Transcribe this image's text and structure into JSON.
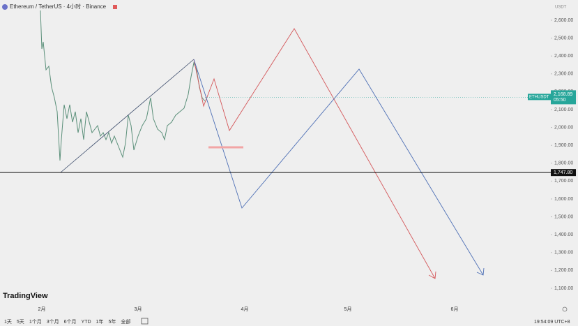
{
  "header": {
    "symbol": "Ethereum / TetherUS · 4小时 · Binance",
    "currency": "USDT"
  },
  "price_axis": {
    "ylim": [
      1100,
      2600
    ],
    "yticks": [
      {
        "value": 2600,
        "label": "2,600.00"
      },
      {
        "value": 2500,
        "label": "2,500.00"
      },
      {
        "value": 2400,
        "label": "2,400.00"
      },
      {
        "value": 2300,
        "label": "2,300.00"
      },
      {
        "value": 2200,
        "label": "2,200.00"
      },
      {
        "value": 2100,
        "label": "2,100.00"
      },
      {
        "value": 2000,
        "label": "2,000.00"
      },
      {
        "value": 1900,
        "label": "1,900.00"
      },
      {
        "value": 1800,
        "label": "1,800.00"
      },
      {
        "value": 1700,
        "label": "1,700.00"
      },
      {
        "value": 1600,
        "label": "1,600.00"
      },
      {
        "value": 1500,
        "label": "1,500.00"
      },
      {
        "value": 1400,
        "label": "1,400.00"
      },
      {
        "value": 1300,
        "label": "1,300.00"
      },
      {
        "value": 1200,
        "label": "1,200.00"
      },
      {
        "value": 1100,
        "label": "1,100.00"
      }
    ],
    "last_price": {
      "symbol": "ETHUSDT",
      "value": 2168.89,
      "label": "2,168.89",
      "countdown": "05:50"
    },
    "horizontal_line": {
      "value": 1747.8,
      "label": "1,747.80"
    }
  },
  "time_axis": [
    "2月",
    "3月",
    "4月",
    "5月",
    "6月"
  ],
  "logo": "TradingView",
  "toolbar": {
    "ranges": [
      "1天",
      "5天",
      "1个月",
      "3个月",
      "6个月",
      "YTD",
      "1年",
      "5年",
      "全部"
    ],
    "clock": "19:54:09 UTC+8"
  }
}
